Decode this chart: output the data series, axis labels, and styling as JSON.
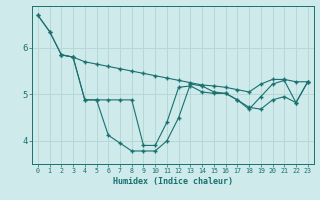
{
  "xlabel": "Humidex (Indice chaleur)",
  "background_color": "#ceeaea",
  "grid_color": "#b8d8d8",
  "line_color": "#1a7070",
  "x_min": 0,
  "x_max": 23,
  "y_min": 3.5,
  "y_max": 6.9,
  "yticks": [
    4,
    5,
    6
  ],
  "line1_x": [
    0,
    1,
    2,
    3,
    4,
    5,
    6,
    7,
    8,
    9,
    10,
    11,
    12,
    13,
    14,
    15,
    16,
    17,
    18,
    19,
    20,
    21,
    22,
    23
  ],
  "line1_y": [
    6.7,
    6.35,
    5.85,
    5.8,
    5.7,
    5.65,
    5.6,
    5.55,
    5.5,
    5.45,
    5.4,
    5.35,
    5.3,
    5.25,
    5.2,
    5.18,
    5.15,
    5.1,
    5.05,
    5.22,
    5.32,
    5.32,
    5.27,
    5.27
  ],
  "line2_x": [
    2,
    3,
    4,
    5,
    6,
    7,
    8,
    9,
    10,
    11,
    12,
    13,
    14,
    15,
    16,
    17,
    18,
    19,
    20,
    21,
    22,
    23
  ],
  "line2_y": [
    5.85,
    5.8,
    4.88,
    4.88,
    4.12,
    3.95,
    3.78,
    3.78,
    3.78,
    4.0,
    4.5,
    5.22,
    5.18,
    5.05,
    5.02,
    4.88,
    4.72,
    4.68,
    4.88,
    4.95,
    4.82,
    5.27
  ],
  "line3_x": [
    0,
    1,
    2,
    3,
    4,
    5,
    6,
    7,
    8,
    9,
    10,
    11,
    12,
    13,
    14,
    15,
    16,
    17,
    18,
    19,
    20,
    21,
    22,
    23
  ],
  "line3_y": [
    6.7,
    6.35,
    5.85,
    5.8,
    4.88,
    4.88,
    4.88,
    4.88,
    4.88,
    3.9,
    3.9,
    4.4,
    5.15,
    5.18,
    5.05,
    5.02,
    5.02,
    4.88,
    4.68,
    4.95,
    5.22,
    5.3,
    4.82,
    5.27
  ]
}
